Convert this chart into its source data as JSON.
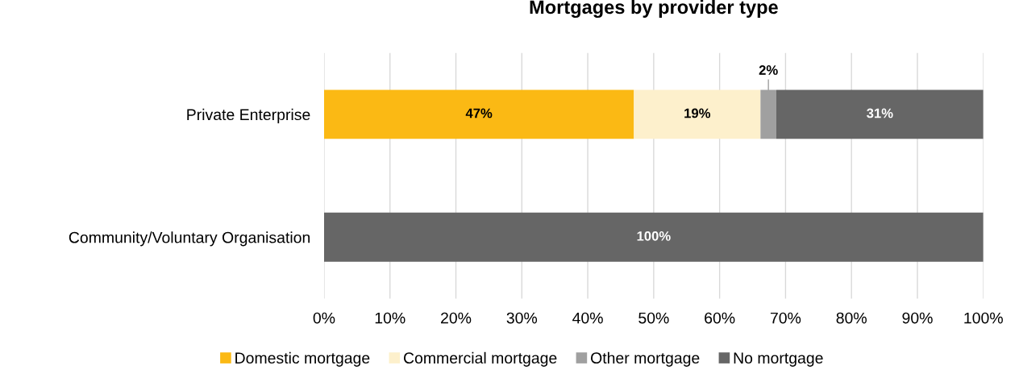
{
  "chart_data": {
    "type": "bar",
    "orientation": "horizontal",
    "stacked": true,
    "title": "Mortgages by provider type",
    "categories": [
      "Private Enterprise",
      "Community/Voluntary Organisation"
    ],
    "series": [
      {
        "name": "Domestic mortgage",
        "color": "#fbb914",
        "values": [
          47.0,
          0
        ],
        "value_labels": [
          "47%",
          null
        ]
      },
      {
        "name": "Commercial mortgage",
        "color": "#fdf0cc",
        "values": [
          19.2,
          0
        ],
        "value_labels": [
          "19%",
          null
        ]
      },
      {
        "name": "Other mortgage",
        "color": "#a0a0a0",
        "values": [
          2.4,
          0
        ],
        "value_labels": [
          "2%",
          null
        ]
      },
      {
        "name": "No mortgage",
        "color": "#666666",
        "values": [
          31.4,
          100
        ],
        "value_labels": [
          "31%",
          "100%"
        ]
      }
    ],
    "xlim": [
      0,
      100
    ],
    "xticks": [
      {
        "value": 0,
        "label": "0%"
      },
      {
        "value": 10,
        "label": "10%"
      },
      {
        "value": 20,
        "label": "20%"
      },
      {
        "value": 30,
        "label": "30%"
      },
      {
        "value": 40,
        "label": "40%"
      },
      {
        "value": 50,
        "label": "50%"
      },
      {
        "value": 60,
        "label": "60%"
      },
      {
        "value": 70,
        "label": "70%"
      },
      {
        "value": 80,
        "label": "80%"
      },
      {
        "value": 90,
        "label": "90%"
      },
      {
        "value": 100,
        "label": "100%"
      }
    ],
    "grid": "x",
    "legend": "bottom"
  }
}
